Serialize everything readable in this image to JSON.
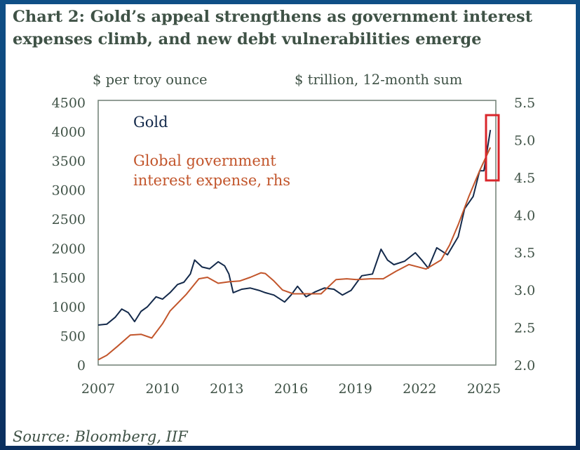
{
  "title_lines": [
    "Chart 2: Gold’s appeal strengthens as government interest",
    "expenses climb, and new debt vulnerabilities emerge"
  ],
  "source": "Source: Bloomberg, IIF",
  "colors": {
    "gold": "#13294a",
    "interest": "#c2552b",
    "highlight": "#d9262b",
    "text": "#3f5246",
    "axis": "#6f7f73"
  },
  "chart_data": {
    "type": "line",
    "title": "Chart 2: Gold’s appeal strengthens as government interest expenses climb, and new debt vulnerabilities emerge",
    "ylabel_left": "$ per troy ounce",
    "ylabel_right": "$ trillion, 12-month sum",
    "xlim": [
      2007,
      2025.55
    ],
    "ylim_left": [
      0,
      4500
    ],
    "ylim_right": [
      2.0,
      5.5
    ],
    "xticks": [
      "2007",
      "2010",
      "2013",
      "2016",
      "2019",
      "2022",
      "2025"
    ],
    "yticks_left": [
      "4500",
      "4000",
      "3500",
      "3000",
      "2500",
      "2000",
      "1500",
      "1000",
      "500",
      "0"
    ],
    "yticks_right": [
      "5.5",
      "5.0",
      "4.5",
      "4.0",
      "3.5",
      "3.0",
      "2.5",
      "2.0"
    ],
    "grid": false,
    "annotation": "red box highlighting 2025",
    "series": [
      {
        "name": "Gold",
        "axis": "left",
        "x": [
          2007.0,
          2007.4,
          2007.8,
          2008.1,
          2008.4,
          2008.7,
          2009.0,
          2009.3,
          2009.7,
          2010.0,
          2010.35,
          2010.7,
          2011.0,
          2011.3,
          2011.5,
          2011.85,
          2012.2,
          2012.6,
          2012.9,
          2013.1,
          2013.3,
          2013.7,
          2014.1,
          2014.5,
          2014.8,
          2015.2,
          2015.7,
          2016.0,
          2016.3,
          2016.7,
          2017.1,
          2017.55,
          2018.0,
          2018.4,
          2018.8,
          2019.3,
          2019.8,
          2020.2,
          2020.5,
          2020.8,
          2021.3,
          2021.8,
          2022.1,
          2022.4,
          2022.8,
          2023.3,
          2023.8,
          2024.1,
          2024.5,
          2024.8,
          2025.0,
          2025.3
        ],
        "values": [
          686,
          700,
          820,
          960,
          900,
          745,
          920,
          1000,
          1170,
          1130,
          1240,
          1380,
          1420,
          1560,
          1800,
          1680,
          1650,
          1770,
          1700,
          1560,
          1240,
          1300,
          1320,
          1280,
          1240,
          1200,
          1080,
          1200,
          1350,
          1170,
          1250,
          1320,
          1300,
          1200,
          1280,
          1530,
          1560,
          1985,
          1800,
          1720,
          1780,
          1925,
          1800,
          1660,
          2010,
          1890,
          2200,
          2680,
          2890,
          3330,
          3330,
          4030
        ]
      },
      {
        "name": "Global government interest expense, rhs",
        "axis": "right",
        "x": [
          2007.0,
          2007.4,
          2007.9,
          2008.5,
          2009.0,
          2009.5,
          2010.0,
          2010.35,
          2011.1,
          2011.7,
          2012.1,
          2012.6,
          2013.1,
          2013.6,
          2014.1,
          2014.6,
          2014.8,
          2015.2,
          2015.6,
          2016.1,
          2016.8,
          2017.4,
          2018.1,
          2018.6,
          2019.05,
          2019.7,
          2020.3,
          2020.9,
          2021.5,
          2022.3,
          2023.0,
          2023.4,
          2023.8,
          2024.3,
          2024.8,
          2025.3
        ],
        "values": [
          2.07,
          2.13,
          2.25,
          2.4,
          2.41,
          2.36,
          2.55,
          2.72,
          2.94,
          3.15,
          3.17,
          3.09,
          3.11,
          3.12,
          3.17,
          3.23,
          3.22,
          3.12,
          3.0,
          2.95,
          2.95,
          2.95,
          3.14,
          3.15,
          3.14,
          3.15,
          3.15,
          3.25,
          3.34,
          3.28,
          3.4,
          3.6,
          3.87,
          4.25,
          4.59,
          4.9
        ]
      }
    ]
  }
}
